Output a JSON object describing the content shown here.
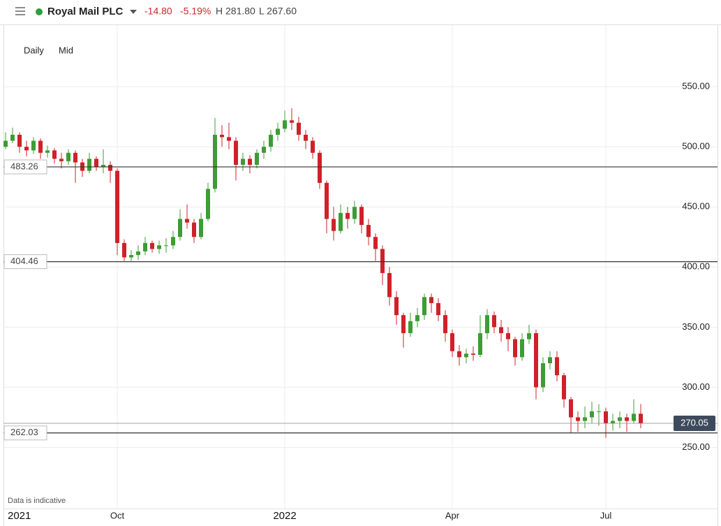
{
  "header": {
    "title": "Royal Mail PLC",
    "change": "-14.80",
    "change_pct": "-5.19%",
    "high": "H 281.80",
    "low": "L 267.60"
  },
  "controls": {
    "interval": "Daily",
    "price": "Mid"
  },
  "footer": "Data is indicative",
  "chart_data": {
    "type": "candlestick",
    "categories": [
      null,
      null,
      "2021",
      null,
      null,
      null,
      null,
      null,
      null,
      null,
      null,
      null,
      null,
      null,
      null,
      null,
      "Oct",
      null,
      null,
      null,
      null,
      null,
      null,
      null,
      null,
      null,
      null,
      null,
      null,
      null,
      null,
      null,
      null,
      null,
      null,
      null,
      null,
      null,
      null,
      null,
      "2022",
      null,
      null,
      null,
      null,
      null,
      null,
      null,
      null,
      null,
      null,
      null,
      null,
      null,
      null,
      null,
      null,
      null,
      null,
      null,
      null,
      null,
      null,
      null,
      "Apr",
      null,
      null,
      null,
      null,
      null,
      null,
      null,
      null,
      null,
      null,
      null,
      null,
      null,
      null,
      null,
      null,
      null,
      null,
      null,
      null,
      null,
      "Jul",
      null,
      null,
      null,
      null,
      null
    ],
    "open": [
      500,
      505,
      510,
      500,
      497,
      505,
      495,
      497,
      490,
      488,
      495,
      487,
      480,
      490,
      483,
      485,
      480,
      420,
      408,
      410,
      413,
      420,
      415,
      418,
      418,
      425,
      440,
      437,
      425,
      440,
      465,
      510,
      508,
      505,
      485,
      490,
      485,
      495,
      500,
      510,
      515,
      522,
      520,
      510,
      505,
      495,
      470,
      440,
      430,
      445,
      440,
      450,
      435,
      425,
      415,
      395,
      375,
      360,
      345,
      355,
      360,
      375,
      370,
      360,
      345,
      330,
      325,
      328,
      327,
      345,
      360,
      350,
      345,
      340,
      325,
      340,
      345,
      300,
      320,
      325,
      310,
      290,
      275,
      272,
      275,
      280,
      280,
      270,
      272,
      275,
      272,
      278
    ],
    "high": [
      512,
      516,
      512,
      505,
      508,
      507,
      501,
      499,
      495,
      498,
      497,
      490,
      495,
      492,
      498,
      488,
      482,
      423,
      414,
      418,
      425,
      422,
      422,
      424,
      430,
      448,
      452,
      440,
      445,
      470,
      524,
      518,
      520,
      508,
      495,
      493,
      498,
      505,
      514,
      520,
      530,
      532,
      525,
      514,
      508,
      497,
      472,
      450,
      452,
      450,
      455,
      452,
      440,
      428,
      418,
      400,
      380,
      362,
      362,
      366,
      378,
      378,
      374,
      364,
      348,
      335,
      332,
      334,
      360,
      365,
      363,
      356,
      350,
      342,
      345,
      352,
      348,
      325,
      330,
      330,
      312,
      292,
      280,
      284,
      288,
      286,
      283,
      278,
      280,
      278,
      290,
      286
    ],
    "low": [
      498,
      503,
      495,
      492,
      494,
      490,
      491,
      486,
      482,
      485,
      470,
      475,
      478,
      480,
      478,
      470,
      410,
      405,
      405,
      406,
      410,
      412,
      411,
      412,
      415,
      422,
      432,
      420,
      423,
      438,
      462,
      500,
      498,
      472,
      480,
      478,
      482,
      490,
      496,
      505,
      512,
      514,
      505,
      498,
      490,
      465,
      428,
      422,
      428,
      432,
      436,
      428,
      418,
      405,
      385,
      368,
      352,
      333,
      342,
      350,
      356,
      362,
      355,
      338,
      325,
      318,
      320,
      322,
      325,
      340,
      345,
      338,
      330,
      318,
      322,
      336,
      290,
      296,
      315,
      305,
      283,
      262,
      263,
      266,
      270,
      268,
      258,
      264,
      266,
      263,
      270,
      266
    ],
    "close": [
      505,
      510,
      500,
      497,
      505,
      495,
      497,
      490,
      488,
      495,
      487,
      480,
      490,
      483,
      485,
      480,
      420,
      408,
      410,
      413,
      420,
      415,
      418,
      418,
      425,
      440,
      437,
      425,
      440,
      465,
      510,
      508,
      505,
      485,
      490,
      485,
      495,
      500,
      510,
      515,
      522,
      520,
      510,
      505,
      495,
      470,
      440,
      430,
      445,
      440,
      450,
      435,
      425,
      415,
      395,
      375,
      360,
      345,
      355,
      360,
      375,
      370,
      360,
      345,
      330,
      325,
      328,
      327,
      345,
      360,
      350,
      345,
      340,
      325,
      340,
      345,
      300,
      320,
      325,
      310,
      290,
      275,
      272,
      275,
      280,
      280,
      270,
      272,
      275,
      272,
      278,
      270.05
    ],
    "up_color": "#3d9c34",
    "down_color": "#cf2129",
    "ylim": [
      198,
      600
    ],
    "yticks": [
      {
        "value": 250,
        "label": "250.00"
      },
      {
        "value": 300,
        "label": "300.00"
      },
      {
        "value": 350,
        "label": "350.00"
      },
      {
        "value": 400,
        "label": "400.00"
      },
      {
        "value": 450,
        "label": "450.00"
      },
      {
        "value": 500,
        "label": "500.00"
      },
      {
        "value": 550,
        "label": "550.00"
      }
    ],
    "grid": true,
    "levels": [
      483.26,
      404.46,
      262.03
    ],
    "last_price": 270.05
  }
}
